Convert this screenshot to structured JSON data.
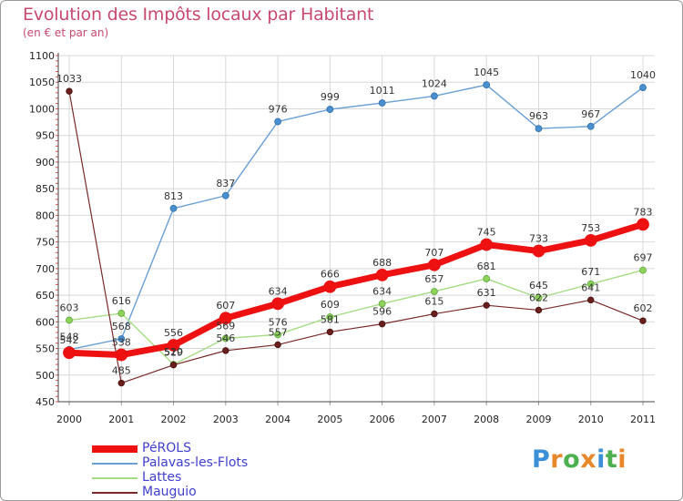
{
  "header": {
    "title": "Evolution des Impôts locaux par Habitant",
    "subtitle": "(en € et par an)"
  },
  "logo": {
    "letters": [
      "P",
      "r",
      "o",
      "x",
      "i",
      "t",
      "i"
    ],
    "colors": [
      "#3a8fd6",
      "#e8872a",
      "#4caf50",
      "#e8872a",
      "#3a8fd6",
      "#4caf50",
      "#e8872a"
    ]
  },
  "chart_data": {
    "type": "line",
    "title": "Evolution des Impôts locaux par Habitant",
    "subtitle": "(en € et par an)",
    "xlabel": "",
    "ylabel": "",
    "ylim": [
      450,
      1100
    ],
    "yticks": [
      450,
      500,
      550,
      600,
      650,
      700,
      750,
      800,
      850,
      900,
      950,
      1000,
      1050,
      1100
    ],
    "grid": true,
    "legend_position": "bottom-left",
    "categories": [
      "2000",
      "2001",
      "2002",
      "2003",
      "2004",
      "2005",
      "2006",
      "2007",
      "2008",
      "2009",
      "2010",
      "2011"
    ],
    "series": [
      {
        "name": "PéROLS",
        "color": "#ee1111",
        "values": [
          542,
          538,
          556,
          607,
          634,
          666,
          688,
          707,
          745,
          733,
          753,
          783
        ]
      },
      {
        "name": "Palavas-les-Flots",
        "color": "#6a9fd4",
        "values": [
          548,
          568,
          813,
          837,
          976,
          999,
          1011,
          1024,
          1045,
          963,
          967,
          1040
        ]
      },
      {
        "name": "Lattes",
        "color": "#a6dc86",
        "values": [
          603,
          616,
          520,
          569,
          576,
          609,
          634,
          657,
          681,
          645,
          671,
          697
        ]
      },
      {
        "name": "Mauguio",
        "color": "#7a2a2a",
        "values": [
          1033,
          485,
          519,
          546,
          557,
          581,
          596,
          615,
          631,
          622,
          641,
          602
        ]
      }
    ]
  }
}
